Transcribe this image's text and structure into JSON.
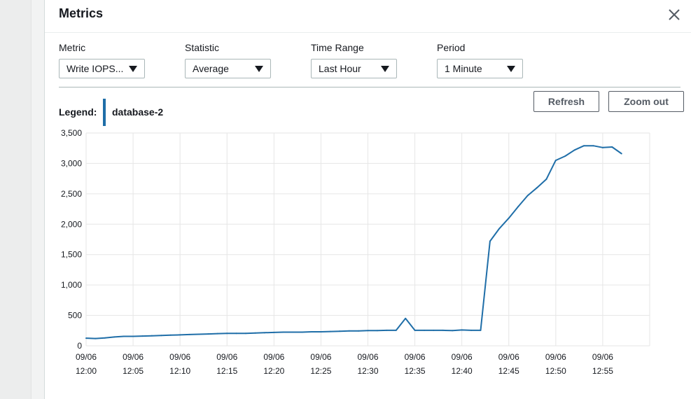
{
  "modal": {
    "title": "Metrics",
    "close_icon": "close-icon"
  },
  "controls": [
    {
      "label": "Metric",
      "value": "Write IOPS..."
    },
    {
      "label": "Statistic",
      "value": "Average"
    },
    {
      "label": "Time Range",
      "value": "Last Hour"
    },
    {
      "label": "Period",
      "value": "1 Minute"
    }
  ],
  "buttons": {
    "refresh": "Refresh",
    "zoom_out": "Zoom out"
  },
  "legend": {
    "label": "Legend:",
    "entry": "database-2",
    "color": "#1f6ea8"
  },
  "chart_data": {
    "type": "line",
    "title": "",
    "xlabel": "",
    "ylabel": "",
    "ylim": [
      0,
      3500
    ],
    "yticks": [
      {
        "value": 0,
        "label": "0"
      },
      {
        "value": 500,
        "label": "500"
      },
      {
        "value": 1000,
        "label": "1,000"
      },
      {
        "value": 1500,
        "label": "1,500"
      },
      {
        "value": 2000,
        "label": "2,000"
      },
      {
        "value": 2500,
        "label": "2,500"
      },
      {
        "value": 3000,
        "label": "3,000"
      },
      {
        "value": 3500,
        "label": "3,500"
      }
    ],
    "xlim": [
      "12:00",
      "13:00"
    ],
    "xticks": [
      {
        "value": "12:00",
        "date": "09/06",
        "time": "12:00"
      },
      {
        "value": "12:05",
        "date": "09/06",
        "time": "12:05"
      },
      {
        "value": "12:10",
        "date": "09/06",
        "time": "12:10"
      },
      {
        "value": "12:15",
        "date": "09/06",
        "time": "12:15"
      },
      {
        "value": "12:20",
        "date": "09/06",
        "time": "12:20"
      },
      {
        "value": "12:25",
        "date": "09/06",
        "time": "12:25"
      },
      {
        "value": "12:30",
        "date": "09/06",
        "time": "12:30"
      },
      {
        "value": "12:35",
        "date": "09/06",
        "time": "12:35"
      },
      {
        "value": "12:40",
        "date": "09/06",
        "time": "12:40"
      },
      {
        "value": "12:45",
        "date": "09/06",
        "time": "12:45"
      },
      {
        "value": "12:50",
        "date": "09/06",
        "time": "12:50"
      },
      {
        "value": "12:55",
        "date": "09/06",
        "time": "12:55"
      }
    ],
    "grid": true,
    "series": [
      {
        "name": "database-2",
        "color": "#1f6ea8",
        "points": [
          {
            "x": "12:00",
            "y": 125
          },
          {
            "x": "12:01",
            "y": 120
          },
          {
            "x": "12:02",
            "y": 130
          },
          {
            "x": "12:03",
            "y": 145
          },
          {
            "x": "12:04",
            "y": 155
          },
          {
            "x": "12:05",
            "y": 155
          },
          {
            "x": "12:06",
            "y": 160
          },
          {
            "x": "12:07",
            "y": 165
          },
          {
            "x": "12:08",
            "y": 170
          },
          {
            "x": "12:09",
            "y": 175
          },
          {
            "x": "12:10",
            "y": 180
          },
          {
            "x": "12:11",
            "y": 185
          },
          {
            "x": "12:12",
            "y": 190
          },
          {
            "x": "12:13",
            "y": 195
          },
          {
            "x": "12:14",
            "y": 200
          },
          {
            "x": "12:15",
            "y": 205
          },
          {
            "x": "12:16",
            "y": 205
          },
          {
            "x": "12:17",
            "y": 205
          },
          {
            "x": "12:18",
            "y": 210
          },
          {
            "x": "12:19",
            "y": 215
          },
          {
            "x": "12:20",
            "y": 220
          },
          {
            "x": "12:21",
            "y": 225
          },
          {
            "x": "12:22",
            "y": 225
          },
          {
            "x": "12:23",
            "y": 225
          },
          {
            "x": "12:24",
            "y": 230
          },
          {
            "x": "12:25",
            "y": 230
          },
          {
            "x": "12:26",
            "y": 235
          },
          {
            "x": "12:27",
            "y": 240
          },
          {
            "x": "12:28",
            "y": 245
          },
          {
            "x": "12:29",
            "y": 245
          },
          {
            "x": "12:30",
            "y": 250
          },
          {
            "x": "12:31",
            "y": 250
          },
          {
            "x": "12:32",
            "y": 255
          },
          {
            "x": "12:33",
            "y": 255
          },
          {
            "x": "12:34",
            "y": 450
          },
          {
            "x": "12:35",
            "y": 255
          },
          {
            "x": "12:36",
            "y": 255
          },
          {
            "x": "12:37",
            "y": 255
          },
          {
            "x": "12:38",
            "y": 255
          },
          {
            "x": "12:39",
            "y": 250
          },
          {
            "x": "12:40",
            "y": 260
          },
          {
            "x": "12:41",
            "y": 255
          },
          {
            "x": "12:42",
            "y": 255
          },
          {
            "x": "12:43",
            "y": 1720
          },
          {
            "x": "12:44",
            "y": 1930
          },
          {
            "x": "12:45",
            "y": 2100
          },
          {
            "x": "12:46",
            "y": 2290
          },
          {
            "x": "12:47",
            "y": 2470
          },
          {
            "x": "12:48",
            "y": 2600
          },
          {
            "x": "12:49",
            "y": 2740
          },
          {
            "x": "12:50",
            "y": 3050
          },
          {
            "x": "12:51",
            "y": 3120
          },
          {
            "x": "12:52",
            "y": 3220
          },
          {
            "x": "12:53",
            "y": 3290
          },
          {
            "x": "12:54",
            "y": 3290
          },
          {
            "x": "12:55",
            "y": 3260
          },
          {
            "x": "12:56",
            "y": 3270
          },
          {
            "x": "12:57",
            "y": 3160
          }
        ]
      }
    ]
  }
}
